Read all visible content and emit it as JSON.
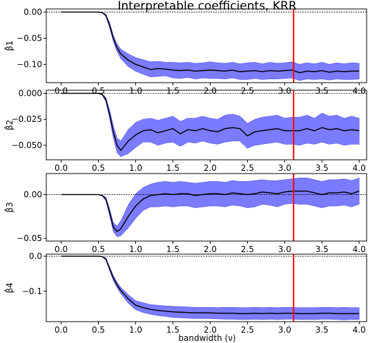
{
  "figure": {
    "title": "Interpretable coefficients, KRR",
    "xlabel": "bandwidth (ν)"
  },
  "colors": {
    "band": "#7b7bff",
    "band_edge": "#5555ee",
    "mean_line": "#000000",
    "marker_line": "#ff0000",
    "zero_line": "#000000"
  },
  "chart_data": [
    {
      "type": "line",
      "ylabel": "β̂1",
      "xlim": [
        -0.2,
        4.1
      ],
      "ylim": [
        -0.135,
        0.006
      ],
      "yticks": [
        0.0,
        -0.05,
        -0.1
      ],
      "ytick_labels": [
        "0.00",
        "−0.05",
        "−0.10"
      ],
      "xticks": [
        0.0,
        0.5,
        1.0,
        1.5,
        2.0,
        2.5,
        3.0,
        3.5,
        4.0
      ],
      "xtick_labels": [
        "0.0",
        "0.5",
        "1.0",
        "1.5",
        "2.0",
        "2.5",
        "3.0",
        "3.5",
        "4.0"
      ],
      "vline_x": 3.12,
      "x": [
        0.0,
        0.5,
        0.55,
        0.6,
        0.65,
        0.7,
        0.75,
        0.8,
        0.9,
        1.0,
        1.1,
        1.2,
        1.3,
        1.4,
        1.5,
        1.6,
        1.7,
        1.8,
        1.9,
        2.0,
        2.1,
        2.2,
        2.3,
        2.4,
        2.5,
        2.6,
        2.7,
        2.8,
        2.9,
        3.0,
        3.1,
        3.2,
        3.3,
        3.4,
        3.5,
        3.6,
        3.7,
        3.8,
        3.9,
        4.0
      ],
      "mean": [
        0.0,
        0.0,
        -0.001,
        -0.006,
        -0.025,
        -0.05,
        -0.068,
        -0.08,
        -0.092,
        -0.1,
        -0.105,
        -0.11,
        -0.108,
        -0.109,
        -0.111,
        -0.112,
        -0.111,
        -0.113,
        -0.112,
        -0.111,
        -0.112,
        -0.113,
        -0.111,
        -0.114,
        -0.113,
        -0.112,
        -0.114,
        -0.112,
        -0.113,
        -0.112,
        -0.111,
        -0.116,
        -0.113,
        -0.114,
        -0.112,
        -0.115,
        -0.113,
        -0.114,
        -0.113,
        -0.113
      ],
      "upper": [
        0.0,
        0.0,
        -0.0005,
        -0.004,
        -0.02,
        -0.044,
        -0.061,
        -0.071,
        -0.08,
        -0.087,
        -0.091,
        -0.095,
        -0.094,
        -0.096,
        -0.096,
        -0.097,
        -0.096,
        -0.098,
        -0.097,
        -0.095,
        -0.097,
        -0.098,
        -0.096,
        -0.099,
        -0.097,
        -0.096,
        -0.099,
        -0.096,
        -0.098,
        -0.097,
        -0.095,
        -0.1,
        -0.097,
        -0.099,
        -0.096,
        -0.1,
        -0.097,
        -0.099,
        -0.097,
        -0.098
      ],
      "lower": [
        0.0,
        0.0,
        -0.0015,
        -0.008,
        -0.03,
        -0.056,
        -0.075,
        -0.089,
        -0.104,
        -0.113,
        -0.119,
        -0.124,
        -0.123,
        -0.122,
        -0.126,
        -0.127,
        -0.125,
        -0.128,
        -0.126,
        -0.127,
        -0.127,
        -0.128,
        -0.126,
        -0.129,
        -0.129,
        -0.127,
        -0.129,
        -0.128,
        -0.128,
        -0.127,
        -0.126,
        -0.131,
        -0.128,
        -0.129,
        -0.128,
        -0.13,
        -0.128,
        -0.129,
        -0.129,
        -0.128
      ]
    },
    {
      "type": "line",
      "ylabel": "β̂2",
      "xlim": [
        -0.2,
        4.1
      ],
      "ylim": [
        -0.064,
        0.003
      ],
      "yticks": [
        0.0,
        -0.025,
        -0.05
      ],
      "ytick_labels": [
        "0.000",
        "−0.025",
        "−0.050"
      ],
      "xticks": [
        0.0,
        0.5,
        1.0,
        1.5,
        2.0,
        2.5,
        3.0,
        3.5,
        4.0
      ],
      "xtick_labels": [
        "0.0",
        "0.5",
        "1.0",
        "1.5",
        "2.0",
        "2.5",
        "3.0",
        "3.5",
        "4.0"
      ],
      "vline_x": 3.12,
      "x": [
        0.0,
        0.5,
        0.55,
        0.6,
        0.65,
        0.7,
        0.75,
        0.8,
        0.9,
        1.0,
        1.1,
        1.2,
        1.3,
        1.4,
        1.5,
        1.6,
        1.7,
        1.8,
        1.9,
        2.0,
        2.1,
        2.2,
        2.3,
        2.4,
        2.5,
        2.6,
        2.7,
        2.8,
        2.9,
        3.0,
        3.1,
        3.2,
        3.3,
        3.4,
        3.5,
        3.6,
        3.7,
        3.8,
        3.9,
        4.0
      ],
      "mean": [
        0.0,
        0.0,
        -0.001,
        -0.006,
        -0.02,
        -0.037,
        -0.05,
        -0.055,
        -0.046,
        -0.04,
        -0.036,
        -0.035,
        -0.038,
        -0.036,
        -0.034,
        -0.039,
        -0.035,
        -0.036,
        -0.034,
        -0.036,
        -0.037,
        -0.034,
        -0.033,
        -0.034,
        -0.041,
        -0.037,
        -0.036,
        -0.035,
        -0.034,
        -0.036,
        -0.036,
        -0.036,
        -0.034,
        -0.036,
        -0.033,
        -0.035,
        -0.034,
        -0.036,
        -0.035,
        -0.036
      ],
      "upper": [
        0.0,
        0.0,
        -0.0005,
        -0.004,
        -0.016,
        -0.031,
        -0.043,
        -0.046,
        -0.035,
        -0.028,
        -0.025,
        -0.024,
        -0.026,
        -0.024,
        -0.022,
        -0.027,
        -0.024,
        -0.024,
        -0.022,
        -0.024,
        -0.025,
        -0.021,
        -0.02,
        -0.022,
        -0.029,
        -0.025,
        -0.023,
        -0.022,
        -0.021,
        -0.024,
        -0.023,
        -0.023,
        -0.021,
        -0.024,
        -0.019,
        -0.022,
        -0.021,
        -0.024,
        -0.022,
        -0.024
      ],
      "lower": [
        0.0,
        0.0,
        -0.0015,
        -0.008,
        -0.024,
        -0.043,
        -0.057,
        -0.061,
        -0.058,
        -0.052,
        -0.047,
        -0.047,
        -0.05,
        -0.048,
        -0.047,
        -0.051,
        -0.047,
        -0.048,
        -0.046,
        -0.048,
        -0.049,
        -0.047,
        -0.046,
        -0.046,
        -0.053,
        -0.05,
        -0.049,
        -0.048,
        -0.047,
        -0.049,
        -0.049,
        -0.05,
        -0.048,
        -0.049,
        -0.047,
        -0.049,
        -0.048,
        -0.05,
        -0.049,
        -0.049
      ]
    },
    {
      "type": "line",
      "ylabel": "β̂3",
      "xlim": [
        -0.2,
        4.1
      ],
      "ylim": [
        -0.053,
        0.024
      ],
      "yticks": [
        0.0,
        -0.05
      ],
      "ytick_labels": [
        "0.00",
        "−0.05"
      ],
      "xticks": [
        0.0,
        0.5,
        1.0,
        1.5,
        2.0,
        2.5,
        3.0,
        3.5,
        4.0
      ],
      "xtick_labels": [
        "0.0",
        "0.5",
        "1.0",
        "1.5",
        "2.0",
        "2.5",
        "3.0",
        "3.5",
        "4.0"
      ],
      "vline_x": 3.12,
      "x": [
        0.0,
        0.5,
        0.55,
        0.6,
        0.65,
        0.7,
        0.75,
        0.8,
        0.9,
        1.0,
        1.1,
        1.2,
        1.3,
        1.4,
        1.5,
        1.6,
        1.7,
        1.8,
        1.9,
        2.0,
        2.1,
        2.2,
        2.3,
        2.4,
        2.5,
        2.6,
        2.7,
        2.8,
        2.9,
        3.0,
        3.1,
        3.2,
        3.3,
        3.4,
        3.5,
        3.6,
        3.7,
        3.8,
        3.9,
        4.0
      ],
      "mean": [
        0.0,
        0.0,
        -0.001,
        -0.005,
        -0.02,
        -0.037,
        -0.042,
        -0.039,
        -0.025,
        -0.013,
        -0.005,
        -0.001,
        0.0,
        0.001,
        0.0,
        0.001,
        0.001,
        -0.001,
        0.0,
        0.001,
        0.001,
        0.0,
        0.002,
        0.001,
        0.0,
        0.001,
        0.003,
        0.002,
        0.001,
        0.003,
        0.004,
        0.004,
        0.004,
        0.002,
        0.0,
        0.002,
        0.002,
        0.003,
        0.001,
        0.004
      ],
      "upper": [
        0.0,
        0.0,
        -0.0005,
        -0.003,
        -0.016,
        -0.032,
        -0.036,
        -0.03,
        -0.012,
        0.001,
        0.008,
        0.012,
        0.014,
        0.015,
        0.014,
        0.015,
        0.014,
        0.013,
        0.014,
        0.015,
        0.015,
        0.014,
        0.016,
        0.015,
        0.015,
        0.016,
        0.017,
        0.016,
        0.016,
        0.017,
        0.018,
        0.019,
        0.019,
        0.017,
        0.015,
        0.017,
        0.017,
        0.018,
        0.016,
        0.019
      ],
      "lower": [
        0.0,
        0.0,
        -0.0015,
        -0.007,
        -0.024,
        -0.042,
        -0.048,
        -0.047,
        -0.038,
        -0.027,
        -0.018,
        -0.014,
        -0.014,
        -0.013,
        -0.014,
        -0.013,
        -0.013,
        -0.015,
        -0.014,
        -0.013,
        -0.013,
        -0.014,
        -0.012,
        -0.013,
        -0.015,
        -0.014,
        -0.011,
        -0.012,
        -0.014,
        -0.011,
        -0.01,
        -0.011,
        -0.011,
        -0.013,
        -0.015,
        -0.013,
        -0.013,
        -0.012,
        -0.014,
        -0.011
      ]
    },
    {
      "type": "line",
      "ylabel": "β̂4",
      "xlim": [
        -0.2,
        4.1
      ],
      "ylim": [
        -0.187,
        0.006
      ],
      "yticks": [
        0.0,
        -0.1
      ],
      "ytick_labels": [
        "0.0",
        "−0.1"
      ],
      "xticks": [
        0.0,
        0.5,
        1.0,
        1.5,
        2.0,
        2.5,
        3.0,
        3.5,
        4.0
      ],
      "xtick_labels": [
        "0.0",
        "0.5",
        "1.0",
        "1.5",
        "2.0",
        "2.5",
        "3.0",
        "3.5",
        "4.0"
      ],
      "vline_x": 3.12,
      "x": [
        0.0,
        0.5,
        0.55,
        0.6,
        0.65,
        0.7,
        0.75,
        0.8,
        0.9,
        1.0,
        1.1,
        1.2,
        1.3,
        1.4,
        1.5,
        1.6,
        1.7,
        1.8,
        1.9,
        2.0,
        2.1,
        2.2,
        2.3,
        2.4,
        2.5,
        2.6,
        2.7,
        2.8,
        2.9,
        3.0,
        3.1,
        3.2,
        3.3,
        3.4,
        3.5,
        3.6,
        3.7,
        3.8,
        3.9,
        4.0
      ],
      "mean": [
        0.0,
        0.0,
        -0.001,
        -0.008,
        -0.035,
        -0.062,
        -0.082,
        -0.098,
        -0.122,
        -0.14,
        -0.147,
        -0.152,
        -0.155,
        -0.157,
        -0.159,
        -0.16,
        -0.161,
        -0.162,
        -0.162,
        -0.162,
        -0.163,
        -0.163,
        -0.163,
        -0.164,
        -0.164,
        -0.163,
        -0.164,
        -0.163,
        -0.164,
        -0.163,
        -0.163,
        -0.164,
        -0.164,
        -0.164,
        -0.163,
        -0.163,
        -0.164,
        -0.164,
        -0.164,
        -0.164
      ],
      "upper": [
        0.0,
        0.0,
        -0.0005,
        -0.005,
        -0.03,
        -0.055,
        -0.074,
        -0.089,
        -0.11,
        -0.127,
        -0.133,
        -0.138,
        -0.14,
        -0.142,
        -0.143,
        -0.144,
        -0.145,
        -0.146,
        -0.146,
        -0.146,
        -0.147,
        -0.146,
        -0.146,
        -0.147,
        -0.147,
        -0.146,
        -0.147,
        -0.146,
        -0.147,
        -0.146,
        -0.146,
        -0.147,
        -0.147,
        -0.147,
        -0.146,
        -0.146,
        -0.147,
        -0.146,
        -0.147,
        -0.147
      ],
      "lower": [
        0.0,
        0.0,
        -0.0015,
        -0.011,
        -0.041,
        -0.069,
        -0.09,
        -0.107,
        -0.134,
        -0.153,
        -0.161,
        -0.166,
        -0.17,
        -0.172,
        -0.175,
        -0.176,
        -0.177,
        -0.178,
        -0.178,
        -0.178,
        -0.179,
        -0.18,
        -0.18,
        -0.181,
        -0.181,
        -0.18,
        -0.181,
        -0.18,
        -0.181,
        -0.18,
        -0.18,
        -0.181,
        -0.181,
        -0.181,
        -0.18,
        -0.18,
        -0.181,
        -0.182,
        -0.181,
        -0.181
      ]
    }
  ]
}
